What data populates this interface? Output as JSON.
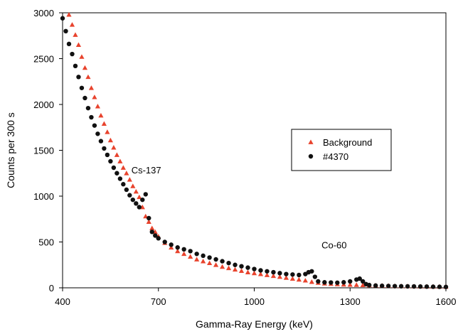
{
  "chart_data": {
    "type": "scatter",
    "title": "",
    "xlabel": "Gamma-Ray Energy (keV)",
    "ylabel": "Counts per 300 s",
    "xlim": [
      400,
      1600
    ],
    "ylim": [
      0,
      3000
    ],
    "x_ticks": [
      400,
      700,
      1000,
      1300,
      1600
    ],
    "y_ticks": [
      0,
      500,
      1000,
      1500,
      2000,
      2500,
      3000
    ],
    "grid": false,
    "legend_position": "right",
    "annotations": [
      {
        "text": "Cs-137",
        "x": 662,
        "y": 1250
      },
      {
        "text": "Co-60",
        "x": 1250,
        "y": 430
      }
    ],
    "series": [
      {
        "name": "Background",
        "marker": "triangle",
        "color": "#e8432d",
        "x": [
          420,
          430,
          440,
          450,
          460,
          470,
          480,
          490,
          500,
          510,
          520,
          530,
          540,
          550,
          560,
          570,
          580,
          590,
          600,
          610,
          620,
          630,
          640,
          650,
          660,
          670,
          680,
          690,
          700,
          720,
          740,
          760,
          780,
          800,
          820,
          840,
          860,
          880,
          900,
          920,
          940,
          960,
          980,
          1000,
          1020,
          1040,
          1060,
          1080,
          1100,
          1120,
          1140,
          1160,
          1180,
          1200,
          1220,
          1240,
          1260,
          1280,
          1300,
          1320,
          1340,
          1360,
          1380,
          1400,
          1420,
          1440,
          1460,
          1480,
          1500,
          1520,
          1540,
          1560,
          1580,
          1600
        ],
        "y": [
          2980,
          2870,
          2760,
          2650,
          2520,
          2400,
          2300,
          2180,
          2080,
          1980,
          1880,
          1790,
          1700,
          1610,
          1530,
          1450,
          1380,
          1310,
          1250,
          1180,
          1110,
          1050,
          990,
          880,
          780,
          720,
          650,
          610,
          560,
          490,
          440,
          400,
          370,
          340,
          310,
          290,
          270,
          250,
          230,
          215,
          200,
          185,
          170,
          160,
          150,
          140,
          130,
          120,
          110,
          100,
          90,
          80,
          65,
          55,
          48,
          44,
          40,
          36,
          34,
          32,
          30,
          28,
          26,
          24,
          22,
          20,
          19,
          18,
          17,
          16,
          15,
          14,
          13,
          12
        ]
      },
      {
        "name": "#4370",
        "marker": "circle",
        "color": "#111111",
        "x": [
          400,
          410,
          420,
          430,
          440,
          450,
          460,
          470,
          480,
          490,
          500,
          510,
          520,
          530,
          540,
          550,
          560,
          570,
          580,
          590,
          600,
          610,
          620,
          630,
          640,
          650,
          660,
          670,
          680,
          690,
          700,
          720,
          740,
          760,
          780,
          800,
          820,
          840,
          860,
          880,
          900,
          920,
          940,
          960,
          980,
          1000,
          1020,
          1040,
          1060,
          1080,
          1100,
          1120,
          1140,
          1160,
          1170,
          1180,
          1190,
          1200,
          1220,
          1240,
          1260,
          1280,
          1300,
          1320,
          1330,
          1340,
          1350,
          1360,
          1380,
          1400,
          1420,
          1440,
          1460,
          1480,
          1500,
          1520,
          1540,
          1560,
          1580,
          1600
        ],
        "y": [
          2940,
          2800,
          2660,
          2550,
          2420,
          2300,
          2180,
          2070,
          1960,
          1860,
          1770,
          1680,
          1600,
          1520,
          1450,
          1380,
          1310,
          1250,
          1190,
          1130,
          1070,
          1010,
          960,
          920,
          880,
          960,
          1020,
          760,
          610,
          570,
          540,
          500,
          470,
          440,
          420,
          400,
          370,
          350,
          330,
          310,
          290,
          270,
          250,
          235,
          220,
          205,
          190,
          180,
          170,
          160,
          150,
          145,
          140,
          150,
          170,
          180,
          120,
          70,
          60,
          58,
          56,
          60,
          70,
          90,
          100,
          70,
          40,
          30,
          25,
          22,
          20,
          18,
          17,
          16,
          15,
          14,
          13,
          12,
          11,
          10
        ]
      }
    ]
  }
}
